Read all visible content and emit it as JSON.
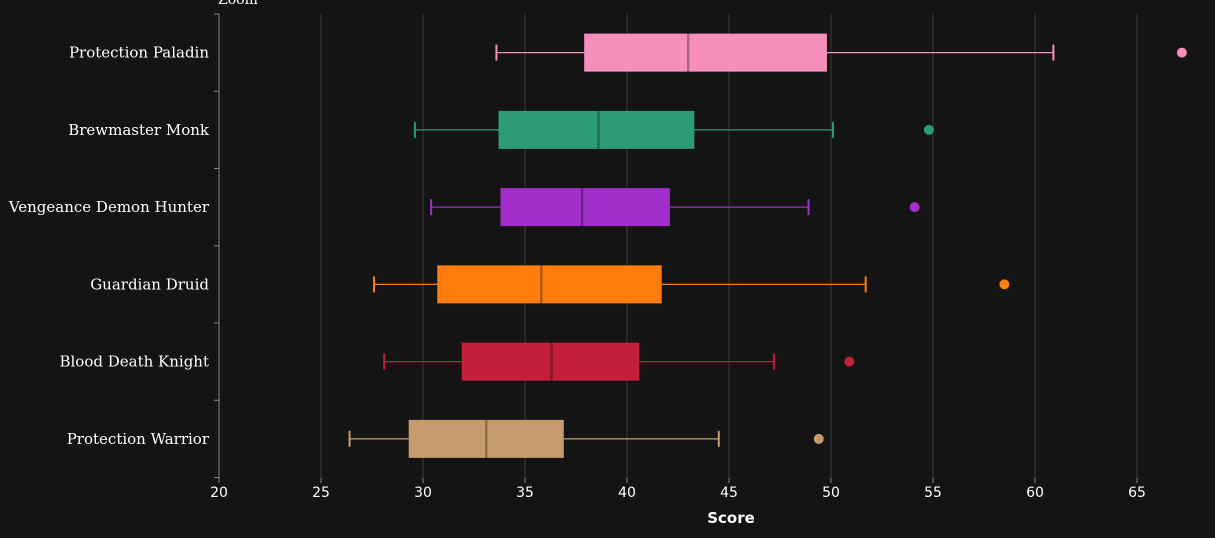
{
  "partial_top_label": "Zoom",
  "chart_data": {
    "type": "boxplot",
    "orientation": "horizontal",
    "xlabel": "Score",
    "xlim": [
      20,
      67.5
    ],
    "xticks": [
      20,
      25,
      30,
      35,
      40,
      45,
      50,
      55,
      60,
      65
    ],
    "grid": true,
    "series": [
      {
        "name": "Protection Paladin",
        "color": "#f78fbd",
        "min": 33.6,
        "q1": 37.9,
        "median": 43.0,
        "q3": 49.8,
        "max": 60.9,
        "outliers": [
          67.2
        ]
      },
      {
        "name": "Brewmaster Monk",
        "color": "#2b9c77",
        "min": 29.6,
        "q1": 33.7,
        "median": 38.6,
        "q3": 43.3,
        "max": 50.1,
        "outliers": [
          54.8
        ]
      },
      {
        "name": "Vengeance Demon Hunter",
        "color": "#a22fcb",
        "min": 30.4,
        "q1": 33.8,
        "median": 37.8,
        "q3": 42.1,
        "max": 48.9,
        "outliers": [
          54.1
        ]
      },
      {
        "name": "Guardian Druid",
        "color": "#ff7d0d",
        "min": 27.6,
        "q1": 30.7,
        "median": 35.8,
        "q3": 41.7,
        "max": 51.7,
        "outliers": [
          58.5
        ]
      },
      {
        "name": "Blood Death Knight",
        "color": "#c41f3b",
        "min": 28.1,
        "q1": 31.9,
        "median": 36.3,
        "q3": 40.6,
        "max": 47.2,
        "outliers": [
          50.9
        ]
      },
      {
        "name": "Protection Warrior",
        "color": "#c69c6e",
        "min": 26.4,
        "q1": 29.3,
        "median": 33.1,
        "q3": 36.9,
        "max": 44.5,
        "outliers": [
          49.4
        ]
      }
    ]
  }
}
